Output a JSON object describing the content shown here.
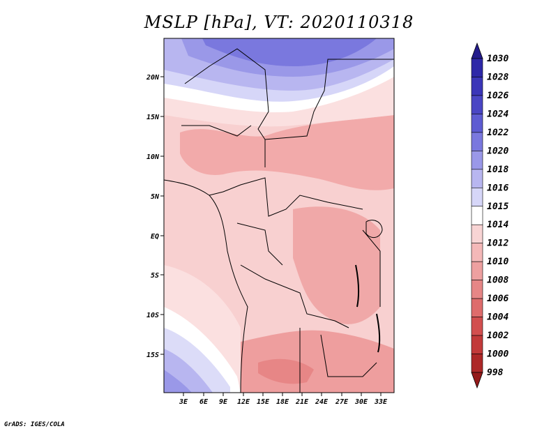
{
  "title": "MSLP [hPa], VT: 2020110318",
  "credit": "GrADS: IGES/COLA",
  "map": {
    "lat_labels": [
      "20N",
      "15N",
      "10N",
      "5N",
      "EQ",
      "5S",
      "10S",
      "15S"
    ],
    "lon_labels": [
      "3E",
      "6E",
      "9E",
      "12E",
      "15E",
      "18E",
      "21E",
      "24E",
      "27E",
      "30E",
      "33E"
    ]
  },
  "colorbar": {
    "levels": [
      "1030",
      "1028",
      "1026",
      "1024",
      "1022",
      "1020",
      "1018",
      "1016",
      "1015",
      "1014",
      "1012",
      "1010",
      "1008",
      "1006",
      "1004",
      "1002",
      "1000",
      "998"
    ],
    "colors": [
      "#241c8c",
      "#2e28a8",
      "#3b36b8",
      "#4a46c4",
      "#5e5cd2",
      "#7a78de",
      "#9a98e8",
      "#b8b6f0",
      "#d6d6f8",
      "#ffffff",
      "#f8d4d4",
      "#f4b8b8",
      "#eda0a0",
      "#e68686",
      "#de6c6c",
      "#d24f4f",
      "#c23a3a",
      "#ad2828",
      "#941a1a"
    ]
  }
}
